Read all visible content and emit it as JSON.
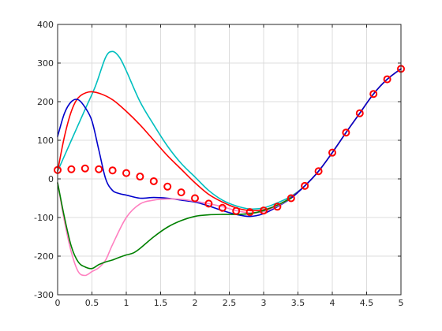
{
  "chart_data": {
    "type": "line",
    "title": "",
    "xlabel": "",
    "ylabel": "",
    "xlim": [
      0,
      5
    ],
    "ylim": [
      -300,
      400
    ],
    "grid": true,
    "x_ticks": [
      "0",
      "0.5",
      "1",
      "1.5",
      "2",
      "2.5",
      "3",
      "3.5",
      "4",
      "4.5",
      "5"
    ],
    "y_ticks": [
      "-300",
      "-200",
      "-100",
      "0",
      "100",
      "200",
      "300",
      "400"
    ],
    "series": [
      {
        "color": "#00bfbf",
        "style": "line",
        "x": [
          0,
          0.2,
          0.4,
          0.55,
          0.7,
          0.8,
          0.9,
          1.0,
          1.2,
          1.4,
          1.6,
          1.8,
          2.0,
          2.2,
          2.4,
          2.6,
          2.8,
          3.0,
          3.2,
          3.4,
          3.6,
          3.8,
          4.0,
          4.2,
          4.4,
          4.6,
          4.8,
          5.0
        ],
        "y": [
          20,
          100,
          180,
          240,
          315,
          330,
          315,
          280,
          200,
          140,
          85,
          40,
          5,
          -30,
          -55,
          -70,
          -78,
          -75,
          -62,
          -45,
          -18,
          20,
          68,
          120,
          170,
          220,
          258,
          285
        ]
      },
      {
        "color": "#ff0000",
        "style": "line",
        "x": [
          0,
          0.1,
          0.2,
          0.3,
          0.45,
          0.6,
          0.8,
          1.0,
          1.2,
          1.4,
          1.6,
          1.8,
          2.0,
          2.2,
          2.4,
          2.6,
          2.8,
          3.0,
          3.2,
          3.4,
          3.6,
          3.8,
          4.0,
          4.2,
          4.4,
          4.6,
          4.8,
          5.0
        ],
        "y": [
          20,
          110,
          175,
          210,
          225,
          222,
          205,
          175,
          140,
          100,
          60,
          25,
          -10,
          -40,
          -60,
          -75,
          -82,
          -80,
          -68,
          -48,
          -18,
          20,
          68,
          120,
          170,
          220,
          258,
          285
        ]
      },
      {
        "color": "#0000cc",
        "style": "line",
        "x": [
          0,
          0.1,
          0.2,
          0.3,
          0.4,
          0.5,
          0.6,
          0.7,
          0.8,
          0.9,
          1.0,
          1.2,
          1.4,
          1.6,
          1.8,
          2.0,
          2.2,
          2.4,
          2.6,
          2.8,
          3.0,
          3.2,
          3.4,
          3.6,
          3.8,
          4.0,
          4.2,
          4.4,
          4.6,
          4.8,
          5.0
        ],
        "y": [
          110,
          170,
          200,
          205,
          185,
          150,
          75,
          0,
          -30,
          -38,
          -42,
          -50,
          -48,
          -50,
          -55,
          -60,
          -70,
          -82,
          -92,
          -97,
          -90,
          -72,
          -50,
          -18,
          20,
          68,
          120,
          170,
          220,
          258,
          285
        ]
      },
      {
        "color": "#ff80c0",
        "style": "line",
        "x": [
          0,
          0.1,
          0.2,
          0.3,
          0.4,
          0.5,
          0.6,
          0.7,
          0.8,
          1.0,
          1.2,
          1.4,
          1.6,
          1.8,
          2.0,
          2.2,
          2.4,
          2.6,
          2.8,
          3.0,
          3.2,
          3.4
        ],
        "y": [
          -10,
          -110,
          -190,
          -240,
          -250,
          -240,
          -230,
          -210,
          -170,
          -100,
          -65,
          -55,
          -52,
          -53,
          -58,
          -64,
          -72,
          -82,
          -88,
          -85,
          -70,
          -50
        ]
      },
      {
        "color": "#008000",
        "style": "line",
        "x": [
          0,
          0.1,
          0.2,
          0.3,
          0.4,
          0.5,
          0.6,
          0.7,
          0.8,
          0.9,
          1.0,
          1.1,
          1.2,
          1.4,
          1.6,
          1.8,
          2.0,
          2.2,
          2.4,
          2.6,
          2.8,
          3.0,
          3.2,
          3.4
        ],
        "y": [
          -10,
          -100,
          -175,
          -215,
          -228,
          -232,
          -222,
          -215,
          -210,
          -203,
          -197,
          -192,
          -180,
          -150,
          -125,
          -108,
          -97,
          -93,
          -92,
          -92,
          -90,
          -82,
          -68,
          -50
        ]
      },
      {
        "color": "#ff0000",
        "style": "markers",
        "x": [
          0,
          0.2,
          0.4,
          0.6,
          0.8,
          1.0,
          1.2,
          1.4,
          1.6,
          1.8,
          2.0,
          2.2,
          2.4,
          2.6,
          2.8,
          3.0,
          3.2,
          3.4,
          3.6,
          3.8,
          4.0,
          4.2,
          4.4,
          4.6,
          4.8,
          5.0
        ],
        "y": [
          23,
          25,
          27,
          25,
          22,
          15,
          6,
          -6,
          -20,
          -35,
          -50,
          -64,
          -75,
          -83,
          -86,
          -82,
          -72,
          -50,
          -18,
          20,
          68,
          120,
          170,
          220,
          258,
          285
        ]
      }
    ]
  }
}
